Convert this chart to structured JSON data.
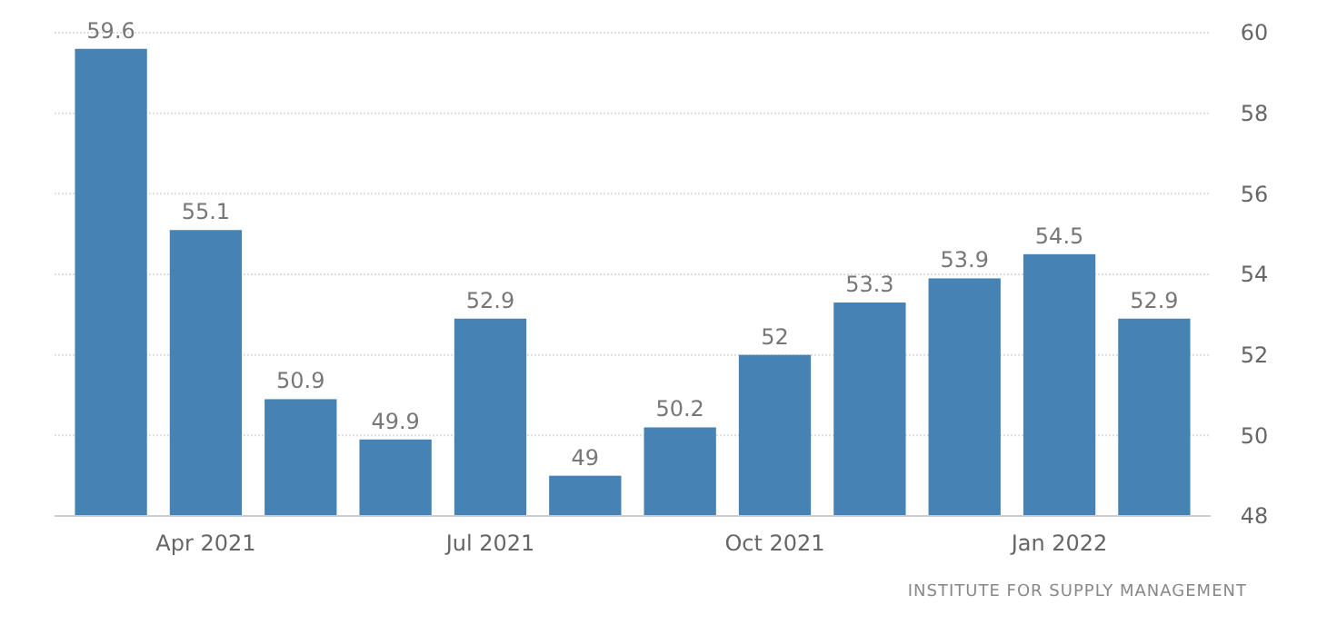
{
  "chart_data": {
    "type": "bar",
    "categories": [
      null,
      "Apr 2021",
      null,
      null,
      "Jul 2021",
      null,
      null,
      "Oct 2021",
      null,
      null,
      "Jan 2022",
      null
    ],
    "values": [
      59.6,
      55.1,
      50.9,
      49.9,
      52.9,
      49,
      50.2,
      52,
      53.3,
      53.9,
      54.5,
      52.9
    ],
    "color": "#4682b4",
    "ylim": [
      48,
      60
    ],
    "yticks": [
      48,
      50,
      52,
      54,
      56,
      58,
      60
    ],
    "grid": "y",
    "data_labels": true,
    "annotations": [
      "INSTITUTE FOR SUPPLY MANAGEMENT"
    ]
  }
}
